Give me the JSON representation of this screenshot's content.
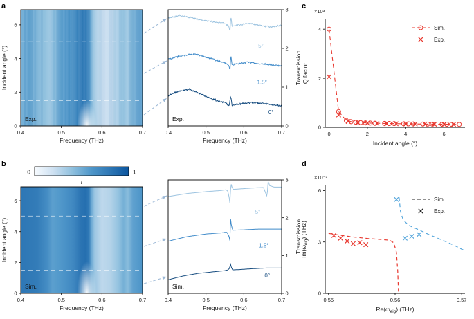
{
  "figure": {
    "panel_labels": {
      "a": "a",
      "b": "b",
      "c": "c",
      "d": "d"
    }
  },
  "colors": {
    "deg0": "#134a7e",
    "deg1p5": "#3f8ac9",
    "deg5": "#9cc3e0",
    "red": "#e8382f",
    "blue": "#57a7dc",
    "arrow": "#9bb8d6",
    "colormap": [
      "#f7fbff",
      "#cde0f1",
      "#8fc0de",
      "#4f97ca",
      "#2e77b5",
      "#0b559f"
    ]
  },
  "colorbar": {
    "min_label": "0",
    "max_label": "1",
    "title": "t"
  },
  "chart_data": [
    {
      "id": "heatmap-exp",
      "type": "heatmap",
      "annotation": "Exp.",
      "xlabel": "Frequency (THz)",
      "ylabel": "Incident angle (°)",
      "xlim": [
        0.4,
        0.7
      ],
      "ylim": [
        0,
        6.9
      ],
      "xticks": {
        "values": [
          0.4,
          0.5,
          0.6,
          0.7
        ],
        "labels": [
          "0.4",
          "0.5",
          "0.6",
          "0.7"
        ]
      },
      "yticks": {
        "values": [
          0,
          2,
          4,
          6
        ],
        "labels": [
          "0",
          "2",
          "4",
          "6"
        ]
      },
      "noisy": true,
      "cut_angles": [
        1.5,
        5
      ],
      "resonance_freqs": [
        0.5655,
        0.6645
      ],
      "bic_freq": 0.563,
      "t_profile": [
        [
          0.4,
          0.5
        ],
        [
          0.42,
          0.53
        ],
        [
          0.44,
          0.47
        ],
        [
          0.46,
          0.4
        ],
        [
          0.472,
          0.36
        ],
        [
          0.485,
          0.44
        ],
        [
          0.5,
          0.55
        ],
        [
          0.52,
          0.62
        ],
        [
          0.54,
          0.72
        ],
        [
          0.553,
          0.78
        ],
        [
          0.565,
          0.74
        ],
        [
          0.572,
          0.55
        ],
        [
          0.578,
          0.38
        ],
        [
          0.59,
          0.27
        ],
        [
          0.605,
          0.2
        ],
        [
          0.625,
          0.24
        ],
        [
          0.64,
          0.32
        ],
        [
          0.653,
          0.4
        ],
        [
          0.663,
          0.34
        ],
        [
          0.675,
          0.46
        ],
        [
          0.69,
          0.52
        ],
        [
          0.7,
          0.54
        ]
      ]
    },
    {
      "id": "spectra-exp",
      "type": "spectra",
      "annotation": "Exp.",
      "xlabel": "Frequency (THz)",
      "ylabel_right": "Transmission",
      "xlim": [
        0.4,
        0.7
      ],
      "ylim": [
        0,
        3
      ],
      "xticks": {
        "values": [
          0.4,
          0.5,
          0.6,
          0.7
        ],
        "labels": [
          "0.4",
          "0.5",
          "0.6",
          "0.7"
        ]
      },
      "yticks": {
        "values": [
          0,
          1,
          2,
          3
        ],
        "labels": [
          "0",
          "1",
          "2",
          "3"
        ]
      },
      "noise": 0.03,
      "series": [
        {
          "name": "0°",
          "color_key": "deg0",
          "label_pos": [
            0.665,
            0.3
          ],
          "points": [
            [
              0.4,
              0.78
            ],
            [
              0.43,
              0.9
            ],
            [
              0.455,
              0.95
            ],
            [
              0.48,
              0.85
            ],
            [
              0.51,
              0.72
            ],
            [
              0.535,
              0.63
            ],
            [
              0.553,
              0.6
            ],
            [
              0.561,
              0.5
            ],
            [
              0.5655,
              0.78
            ],
            [
              0.569,
              0.52
            ],
            [
              0.58,
              0.56
            ],
            [
              0.6,
              0.58
            ],
            [
              0.63,
              0.6
            ],
            [
              0.66,
              0.57
            ],
            [
              0.7,
              0.52
            ]
          ]
        },
        {
          "name": "1.5°",
          "color_key": "deg1p5",
          "label_pos": [
            0.635,
            1.08
          ],
          "points": [
            [
              0.4,
              1.72
            ],
            [
              0.44,
              1.82
            ],
            [
              0.47,
              1.86
            ],
            [
              0.5,
              1.78
            ],
            [
              0.53,
              1.68
            ],
            [
              0.55,
              1.63
            ],
            [
              0.56,
              1.56
            ],
            [
              0.5635,
              1.42
            ],
            [
              0.5655,
              1.83
            ],
            [
              0.569,
              1.57
            ],
            [
              0.58,
              1.6
            ],
            [
              0.61,
              1.65
            ],
            [
              0.65,
              1.6
            ],
            [
              0.7,
              1.55
            ]
          ]
        },
        {
          "name": "5°",
          "color_key": "deg5",
          "label_pos": [
            0.638,
            2.02
          ],
          "points": [
            [
              0.4,
              2.78
            ],
            [
              0.43,
              2.85
            ],
            [
              0.46,
              2.8
            ],
            [
              0.49,
              2.73
            ],
            [
              0.52,
              2.68
            ],
            [
              0.55,
              2.65
            ],
            [
              0.56,
              2.58
            ],
            [
              0.5635,
              2.42
            ],
            [
              0.5655,
              2.85
            ],
            [
              0.569,
              2.58
            ],
            [
              0.58,
              2.6
            ],
            [
              0.61,
              2.65
            ],
            [
              0.64,
              2.6
            ],
            [
              0.67,
              2.55
            ],
            [
              0.7,
              2.6
            ]
          ]
        }
      ]
    },
    {
      "id": "q-factor",
      "type": "qfactor",
      "xlabel": "Incident angle (°)",
      "ylabel": "Q factor",
      "multiplier": "×10³",
      "xlim": [
        -0.2,
        7.1
      ],
      "ylim": [
        0,
        4400
      ],
      "xticks": {
        "values": [
          0,
          2,
          4,
          6
        ],
        "labels": [
          "0",
          "2",
          "4",
          "6"
        ]
      },
      "yticks": {
        "values": [
          0,
          2000,
          4000
        ],
        "labels": [
          "0",
          "2",
          "4"
        ]
      },
      "legend": [
        {
          "label": "Sim.",
          "style": "dash-circle",
          "color": "#e8382f"
        },
        {
          "label": "Exp.",
          "style": "x",
          "color": "#e8382f"
        }
      ],
      "sim_points": [
        [
          0,
          4000
        ],
        [
          0.5,
          640
        ],
        [
          0.9,
          280
        ],
        [
          1.15,
          230
        ],
        [
          1.4,
          205
        ],
        [
          1.65,
          190
        ],
        [
          1.9,
          180
        ],
        [
          2.15,
          172
        ],
        [
          2.4,
          166
        ],
        [
          2.9,
          158
        ],
        [
          3.15,
          154
        ],
        [
          3.4,
          150
        ],
        [
          3.9,
          144
        ],
        [
          4.15,
          141
        ],
        [
          4.4,
          138
        ],
        [
          4.9,
          133
        ],
        [
          5.15,
          131
        ],
        [
          5.4,
          129
        ],
        [
          5.9,
          125
        ],
        [
          6.15,
          123
        ],
        [
          6.4,
          121
        ],
        [
          6.8,
          118
        ]
      ],
      "exp_points": [
        [
          0,
          2060
        ],
        [
          0.5,
          505
        ],
        [
          1,
          240
        ],
        [
          1.5,
          196
        ],
        [
          2,
          172
        ],
        [
          2.5,
          160
        ],
        [
          3,
          151
        ],
        [
          3.5,
          144
        ],
        [
          4,
          139
        ],
        [
          4.5,
          134
        ],
        [
          5,
          130
        ],
        [
          5.5,
          126
        ],
        [
          6,
          122
        ],
        [
          6.5,
          119
        ]
      ]
    },
    {
      "id": "heatmap-sim",
      "type": "heatmap",
      "annotation": "Sim.",
      "xlabel": "Frequency (THz)",
      "ylabel": "Incident angle (°)",
      "xlim": [
        0.4,
        0.7
      ],
      "ylim": [
        0,
        6.9
      ],
      "xticks": {
        "values": [
          0.4,
          0.5,
          0.6,
          0.7
        ],
        "labels": [
          "0.4",
          "0.5",
          "0.6",
          "0.7"
        ]
      },
      "yticks": {
        "values": [
          0,
          2,
          4,
          6
        ],
        "labels": [
          "0",
          "2",
          "4",
          "6"
        ]
      },
      "noisy": false,
      "cut_angles": [
        1.5,
        5
      ],
      "resonance_freqs": [
        0.5655,
        0.6645
      ],
      "bic_freq": 0.563,
      "t_profile": [
        [
          0.4,
          0.8
        ],
        [
          0.44,
          0.77
        ],
        [
          0.465,
          0.66
        ],
        [
          0.478,
          0.56
        ],
        [
          0.49,
          0.58
        ],
        [
          0.51,
          0.63
        ],
        [
          0.53,
          0.7
        ],
        [
          0.548,
          0.82
        ],
        [
          0.56,
          0.85
        ],
        [
          0.568,
          0.78
        ],
        [
          0.574,
          0.52
        ],
        [
          0.582,
          0.36
        ],
        [
          0.6,
          0.25
        ],
        [
          0.62,
          0.28
        ],
        [
          0.64,
          0.38
        ],
        [
          0.653,
          0.48
        ],
        [
          0.664,
          0.42
        ],
        [
          0.676,
          0.55
        ],
        [
          0.7,
          0.62
        ]
      ]
    },
    {
      "id": "spectra-sim",
      "type": "spectra",
      "annotation": "Sim.",
      "xlabel": "Frequency (THz)",
      "ylabel_right": "Transmission",
      "xlim": [
        0.4,
        0.7
      ],
      "ylim": [
        0,
        3
      ],
      "xticks": {
        "values": [
          0.4,
          0.5,
          0.6,
          0.7
        ],
        "labels": [
          "0.4",
          "0.5",
          "0.6",
          "0.7"
        ]
      },
      "yticks": {
        "values": [
          0,
          1,
          2,
          3
        ],
        "labels": [
          "0",
          "1",
          "2",
          "3"
        ]
      },
      "noise": 0,
      "series": [
        {
          "name": "0°",
          "color_key": "deg0",
          "label_pos": [
            0.655,
            0.42
          ],
          "points": [
            [
              0.4,
              0.36
            ],
            [
              0.44,
              0.46
            ],
            [
              0.48,
              0.53
            ],
            [
              0.52,
              0.57
            ],
            [
              0.55,
              0.6
            ],
            [
              0.558,
              0.62
            ],
            [
              0.562,
              0.66
            ],
            [
              0.5648,
              0.78
            ],
            [
              0.566,
              0.72
            ],
            [
              0.57,
              0.62
            ],
            [
              0.59,
              0.63
            ],
            [
              0.62,
              0.65
            ],
            [
              0.66,
              0.67
            ],
            [
              0.7,
              0.67
            ]
          ]
        },
        {
          "name": "1.5°",
          "color_key": "deg1p5",
          "label_pos": [
            0.64,
            1.22
          ],
          "points": [
            [
              0.4,
              1.38
            ],
            [
              0.45,
              1.5
            ],
            [
              0.5,
              1.57
            ],
            [
              0.54,
              1.6
            ],
            [
              0.555,
              1.62
            ],
            [
              0.5605,
              1.52
            ],
            [
              0.5635,
              1.38
            ],
            [
              0.5652,
              2.05
            ],
            [
              0.5672,
              1.78
            ],
            [
              0.571,
              1.67
            ],
            [
              0.6,
              1.68
            ],
            [
              0.64,
              1.7
            ],
            [
              0.7,
              1.7
            ]
          ]
        },
        {
          "name": "5°",
          "color_key": "deg5",
          "label_pos": [
            0.63,
            2.1
          ],
          "points": [
            [
              0.4,
              2.56
            ],
            [
              0.45,
              2.64
            ],
            [
              0.5,
              2.69
            ],
            [
              0.54,
              2.72
            ],
            [
              0.553,
              2.74
            ],
            [
              0.558,
              2.7
            ],
            [
              0.5615,
              2.52
            ],
            [
              0.564,
              2.32
            ],
            [
              0.5655,
              2.96
            ],
            [
              0.568,
              2.82
            ],
            [
              0.572,
              2.75
            ],
            [
              0.6,
              2.77
            ],
            [
              0.63,
              2.79
            ],
            [
              0.652,
              2.8
            ],
            [
              0.6615,
              2.56
            ],
            [
              0.6645,
              2.97
            ],
            [
              0.668,
              2.85
            ],
            [
              0.68,
              2.81
            ],
            [
              0.7,
              2.81
            ]
          ]
        }
      ]
    },
    {
      "id": "eigenfreq",
      "type": "eigen",
      "xlabel": "Re(ω_{eig}) (THz)",
      "ylabel": "Im(ω_{eig}) (THz)",
      "multiplier": "×10⁻³",
      "xlim": [
        0.5495,
        0.5705
      ],
      "ylim": [
        0,
        0.0063
      ],
      "xticks": {
        "values": [
          0.55,
          0.56,
          0.57
        ],
        "labels": [
          "0.55",
          "0.56",
          "0.57"
        ]
      },
      "yticks": {
        "values": [
          0,
          0.003,
          0.006
        ],
        "labels": [
          "0",
          "3",
          "6"
        ]
      },
      "legend": [
        {
          "label": "Sim.",
          "style": "dash",
          "color": "#222222"
        },
        {
          "label": "Exp.",
          "style": "x",
          "color": "#222222"
        }
      ],
      "series": [
        {
          "name": "sim-red",
          "style": "dash",
          "color": "#e8382f",
          "points": [
            [
              0.55,
              0.0035
            ],
            [
              0.552,
              0.00338
            ],
            [
              0.554,
              0.00328
            ],
            [
              0.556,
              0.0032
            ],
            [
              0.558,
              0.00314
            ],
            [
              0.5592,
              0.0031
            ],
            [
              0.5598,
              0.00295
            ],
            [
              0.5602,
              0.0024
            ],
            [
              0.5604,
              0.0013
            ],
            [
              0.5605,
              0.0001
            ]
          ]
        },
        {
          "name": "sim-blue",
          "style": "dash",
          "color": "#57a7dc",
          "points": [
            [
              0.5606,
              0.0056
            ],
            [
              0.5608,
              0.0048
            ],
            [
              0.5612,
              0.0043
            ],
            [
              0.562,
              0.00398
            ],
            [
              0.5635,
              0.00372
            ],
            [
              0.565,
              0.00345
            ],
            [
              0.567,
              0.00312
            ],
            [
              0.569,
              0.00278
            ],
            [
              0.5703,
              0.00252
            ]
          ]
        },
        {
          "name": "exp-red",
          "style": "x",
          "color": "#e8382f",
          "points": [
            [
              0.5508,
              0.00338
            ],
            [
              0.5518,
              0.00322
            ],
            [
              0.5528,
              0.00305
            ],
            [
              0.5537,
              0.0029
            ],
            [
              0.5547,
              0.00296
            ],
            [
              0.5556,
              0.00284
            ]
          ]
        },
        {
          "name": "exp-blue",
          "style": "x",
          "color": "#57a7dc",
          "points": [
            [
              0.5602,
              0.00548
            ],
            [
              0.5615,
              0.00322
            ],
            [
              0.5625,
              0.00333
            ],
            [
              0.5636,
              0.00344
            ]
          ]
        }
      ]
    }
  ]
}
